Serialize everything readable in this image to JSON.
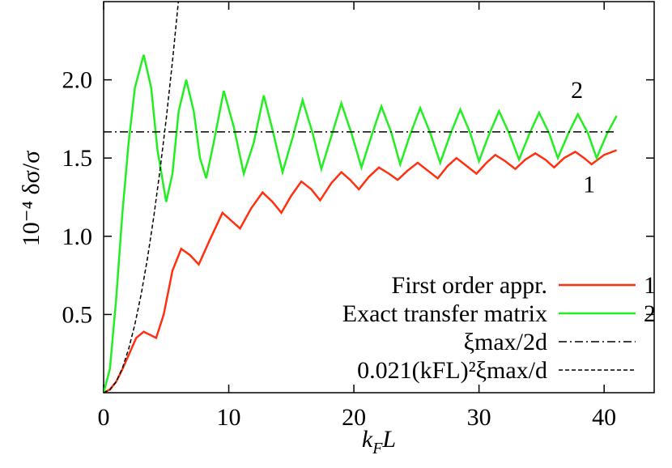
{
  "chart_data": {
    "type": "line",
    "y_label": "10⁻⁴ δσ/σ",
    "x_label": [
      "k",
      "F",
      "L"
    ],
    "xlim": [
      0,
      44
    ],
    "xticks": [
      0,
      10,
      20,
      30,
      40
    ],
    "ylim": [
      0,
      2.5
    ],
    "yticks": [
      0.5,
      {
        "value": 1.0,
        "label": "1.0"
      },
      1.5,
      {
        "value": 2.0,
        "label": "2.0"
      }
    ],
    "legend": "lower right",
    "series": [
      {
        "name": "First order appr.",
        "tag": "1",
        "color": "#ff3010",
        "style": "solid",
        "x": [
          0,
          0.5,
          1,
          1.5,
          2,
          2.6,
          3.2,
          3.7,
          4.2,
          4.8,
          5.5,
          6.2,
          6.9,
          7.6,
          8.5,
          9.5,
          10.2,
          10.9,
          11.8,
          12.7,
          13.5,
          14.2,
          15.0,
          15.8,
          16.6,
          17.3,
          18.2,
          19.0,
          19.7,
          20.4,
          21.2,
          22.0,
          22.8,
          23.5,
          24.3,
          25.1,
          25.9,
          26.7,
          27.5,
          28.2,
          29.0,
          29.8,
          30.6,
          31.3,
          32.1,
          32.9,
          33.7,
          34.5,
          35.3,
          36.0,
          36.8,
          37.7,
          38.4,
          39.0,
          40.0,
          41.0
        ],
        "values": [
          0,
          0.02,
          0.07,
          0.15,
          0.24,
          0.35,
          0.39,
          0.37,
          0.35,
          0.5,
          0.78,
          0.92,
          0.88,
          0.82,
          0.98,
          1.15,
          1.1,
          1.05,
          1.18,
          1.28,
          1.22,
          1.15,
          1.26,
          1.35,
          1.3,
          1.23,
          1.34,
          1.41,
          1.36,
          1.3,
          1.38,
          1.44,
          1.4,
          1.36,
          1.42,
          1.47,
          1.42,
          1.37,
          1.45,
          1.5,
          1.45,
          1.4,
          1.47,
          1.52,
          1.48,
          1.43,
          1.49,
          1.53,
          1.49,
          1.44,
          1.5,
          1.54,
          1.5,
          1.46,
          1.52,
          1.55
        ]
      },
      {
        "name": "Exact transfer matrix",
        "tag": "2",
        "color": "#22ee22",
        "style": "solid",
        "x": [
          0,
          0.5,
          1,
          1.5,
          2,
          2.5,
          3.2,
          3.8,
          4.3,
          5.0,
          5.5,
          6.0,
          6.6,
          7.2,
          7.7,
          8.2,
          8.8,
          9.6,
          10.4,
          11.2,
          12.0,
          12.8,
          13.5,
          14.3,
          15.1,
          15.9,
          16.7,
          17.4,
          18.2,
          19.0,
          19.8,
          20.6,
          21.4,
          22.2,
          23.0,
          23.7,
          24.5,
          25.3,
          26.1,
          26.9,
          27.7,
          28.5,
          29.3,
          30.0,
          30.8,
          31.6,
          32.4,
          33.2,
          34.0,
          34.8,
          35.6,
          36.3,
          37.1,
          37.9,
          38.7,
          39.4,
          40.2,
          41.0
        ],
        "values": [
          0,
          0.15,
          0.6,
          1.15,
          1.6,
          1.95,
          2.16,
          1.95,
          1.55,
          1.22,
          1.4,
          1.8,
          2.0,
          1.8,
          1.5,
          1.37,
          1.6,
          1.93,
          1.7,
          1.4,
          1.6,
          1.9,
          1.68,
          1.41,
          1.63,
          1.87,
          1.66,
          1.43,
          1.64,
          1.85,
          1.66,
          1.44,
          1.64,
          1.83,
          1.66,
          1.46,
          1.65,
          1.82,
          1.66,
          1.47,
          1.65,
          1.81,
          1.66,
          1.48,
          1.65,
          1.8,
          1.66,
          1.49,
          1.65,
          1.79,
          1.66,
          1.5,
          1.65,
          1.78,
          1.66,
          1.5,
          1.65,
          1.77
        ]
      },
      {
        "name": "ξmax/2d",
        "color": "#000000",
        "style": "dashdot",
        "x": [
          0,
          41
        ],
        "values": [
          1.667,
          1.667
        ]
      },
      {
        "name": "0.021(kFL)²ξmax/d",
        "color": "#000000",
        "style": "dashed",
        "x": [
          0,
          0.5,
          1,
          1.5,
          2,
          2.5,
          3,
          3.5,
          4,
          4.5,
          5,
          5.5,
          6
        ],
        "values": [
          0,
          0.0175,
          0.07,
          0.1575,
          0.28,
          0.4375,
          0.63,
          0.8575,
          1.12,
          1.4175,
          1.75,
          2.1175,
          2.52
        ]
      }
    ]
  }
}
